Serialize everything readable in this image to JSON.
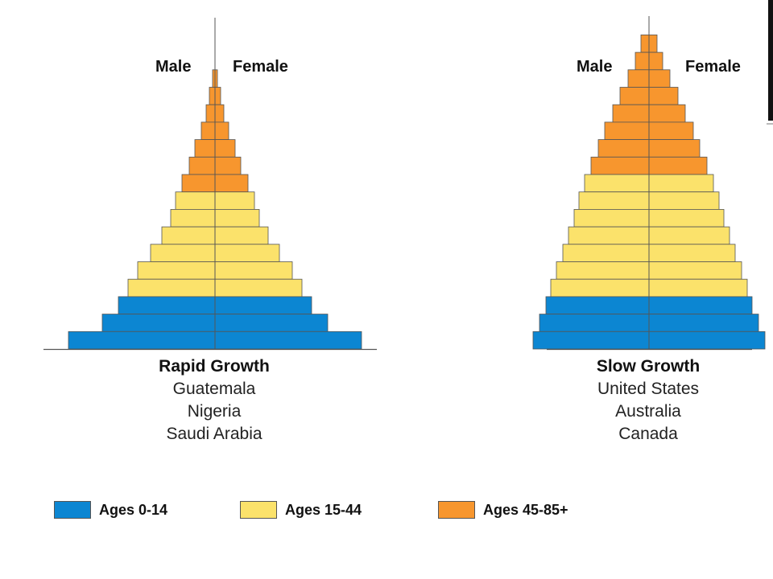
{
  "chart_data": [
    {
      "type": "bar",
      "orientation": "population-pyramid",
      "title": "Rapid Growth",
      "subtitle_lines": [
        "Guatemala",
        "Nigeria",
        "Saudi Arabia"
      ],
      "left_label": "Male",
      "right_label": "Female",
      "bars_top_to_bottom": [
        {
          "value": 3,
          "group": "45-85"
        },
        {
          "value": 7,
          "group": "45-85"
        },
        {
          "value": 11,
          "group": "45-85"
        },
        {
          "value": 17,
          "group": "45-85"
        },
        {
          "value": 25,
          "group": "45-85"
        },
        {
          "value": 32,
          "group": "45-85"
        },
        {
          "value": 41,
          "group": "45-85"
        },
        {
          "value": 49,
          "group": "15-44"
        },
        {
          "value": 55,
          "group": "15-44"
        },
        {
          "value": 66,
          "group": "15-44"
        },
        {
          "value": 80,
          "group": "15-44"
        },
        {
          "value": 96,
          "group": "15-44"
        },
        {
          "value": 108,
          "group": "15-44"
        },
        {
          "value": 120,
          "group": "0-14"
        },
        {
          "value": 140,
          "group": "0-14"
        },
        {
          "value": 182,
          "group": "0-14"
        }
      ]
    },
    {
      "type": "bar",
      "orientation": "population-pyramid",
      "title": "Slow Growth",
      "subtitle_lines": [
        "United States",
        "Australia",
        "Canada"
      ],
      "left_label": "Male",
      "right_label": "Female",
      "bars_top_to_bottom": [
        {
          "value": 10,
          "group": "45-85"
        },
        {
          "value": 17,
          "group": "45-85"
        },
        {
          "value": 26,
          "group": "45-85"
        },
        {
          "value": 36,
          "group": "45-85"
        },
        {
          "value": 45,
          "group": "45-85"
        },
        {
          "value": 55,
          "group": "45-85"
        },
        {
          "value": 63,
          "group": "45-85"
        },
        {
          "value": 72,
          "group": "45-85"
        },
        {
          "value": 80,
          "group": "15-44"
        },
        {
          "value": 87,
          "group": "15-44"
        },
        {
          "value": 93,
          "group": "15-44"
        },
        {
          "value": 100,
          "group": "15-44"
        },
        {
          "value": 107,
          "group": "15-44"
        },
        {
          "value": 115,
          "group": "15-44"
        },
        {
          "value": 122,
          "group": "15-44"
        },
        {
          "value": 128,
          "group": "0-14"
        },
        {
          "value": 136,
          "group": "0-14"
        },
        {
          "value": 144,
          "group": "0-14"
        }
      ]
    }
  ],
  "legend": [
    {
      "key": "0-14",
      "label": "Ages 0-14",
      "color": "#0c86d2"
    },
    {
      "key": "15-44",
      "label": "Ages 15-44",
      "color": "#fbe26b"
    },
    {
      "key": "45-85",
      "label": "Ages 45-85+",
      "color": "#f7962e"
    }
  ]
}
